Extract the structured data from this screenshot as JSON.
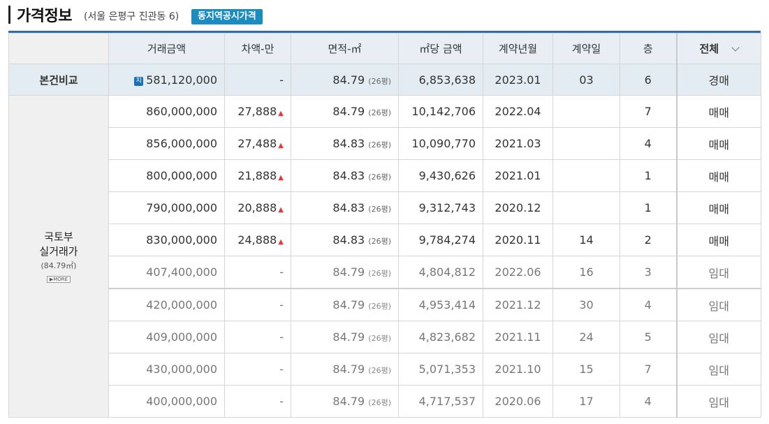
{
  "header": {
    "title": "가격정보",
    "subtitle": "(서울 은평구 진관동 6)",
    "button": "동지역공시가격"
  },
  "columns": [
    "거래금액",
    "차액-만",
    "면적-㎡",
    "㎡당 금액",
    "계약년월",
    "계약일",
    "층"
  ],
  "filter": {
    "selected": "전체"
  },
  "compare": {
    "label": "본건비교",
    "badge": "지",
    "amount": "581,120,000",
    "diff": "-",
    "area": "84.79",
    "pyeong": "(26평)",
    "per_sqm": "6,853,638",
    "ym": "2023.01",
    "day": "03",
    "floor": "6",
    "type": "경매"
  },
  "group": {
    "label_line1": "국토부",
    "label_line2": "실거래가",
    "area_note": "(84.79㎡)",
    "more": "▶MORE"
  },
  "rows": [
    {
      "amount": "860,000,000",
      "diff": "27,888",
      "up": true,
      "area": "84.79",
      "pyeong": "(26평)",
      "per_sqm": "10,142,706",
      "ym": "2022.04",
      "day": "",
      "floor": "7",
      "type": "매매"
    },
    {
      "amount": "856,000,000",
      "diff": "27,488",
      "up": true,
      "area": "84.83",
      "pyeong": "(26평)",
      "per_sqm": "10,090,770",
      "ym": "2021.03",
      "day": "",
      "floor": "4",
      "type": "매매"
    },
    {
      "amount": "800,000,000",
      "diff": "21,888",
      "up": true,
      "area": "84.83",
      "pyeong": "(26평)",
      "per_sqm": "9,430,626",
      "ym": "2021.01",
      "day": "",
      "floor": "1",
      "type": "매매"
    },
    {
      "amount": "790,000,000",
      "diff": "20,888",
      "up": true,
      "area": "84.83",
      "pyeong": "(26평)",
      "per_sqm": "9,312,743",
      "ym": "2020.12",
      "day": "",
      "floor": "1",
      "type": "매매"
    },
    {
      "amount": "830,000,000",
      "diff": "24,888",
      "up": true,
      "area": "84.83",
      "pyeong": "(26평)",
      "per_sqm": "9,784,274",
      "ym": "2020.11",
      "day": "14",
      "floor": "2",
      "type": "매매"
    },
    {
      "amount": "407,400,000",
      "diff": "-",
      "up": false,
      "area": "84.79",
      "pyeong": "(26평)",
      "per_sqm": "4,804,812",
      "ym": "2022.06",
      "day": "16",
      "floor": "3",
      "type": "임대"
    },
    {
      "amount": "420,000,000",
      "diff": "-",
      "up": false,
      "area": "84.79",
      "pyeong": "(26평)",
      "per_sqm": "4,953,414",
      "ym": "2021.12",
      "day": "30",
      "floor": "4",
      "type": "임대"
    },
    {
      "amount": "409,000,000",
      "diff": "-",
      "up": false,
      "area": "84.79",
      "pyeong": "(26평)",
      "per_sqm": "4,823,682",
      "ym": "2021.11",
      "day": "24",
      "floor": "5",
      "type": "임대"
    },
    {
      "amount": "430,000,000",
      "diff": "-",
      "up": false,
      "area": "84.79",
      "pyeong": "(26평)",
      "per_sqm": "5,071,353",
      "ym": "2021.10",
      "day": "15",
      "floor": "7",
      "type": "임대"
    },
    {
      "amount": "400,000,000",
      "diff": "-",
      "up": false,
      "area": "84.79",
      "pyeong": "(26평)",
      "per_sqm": "4,717,537",
      "ym": "2020.06",
      "day": "17",
      "floor": "4",
      "type": "임대"
    }
  ],
  "colors": {
    "accent": "#2e6cb6",
    "button": "#1a8cc0",
    "up_arrow": "#e23a3a"
  }
}
